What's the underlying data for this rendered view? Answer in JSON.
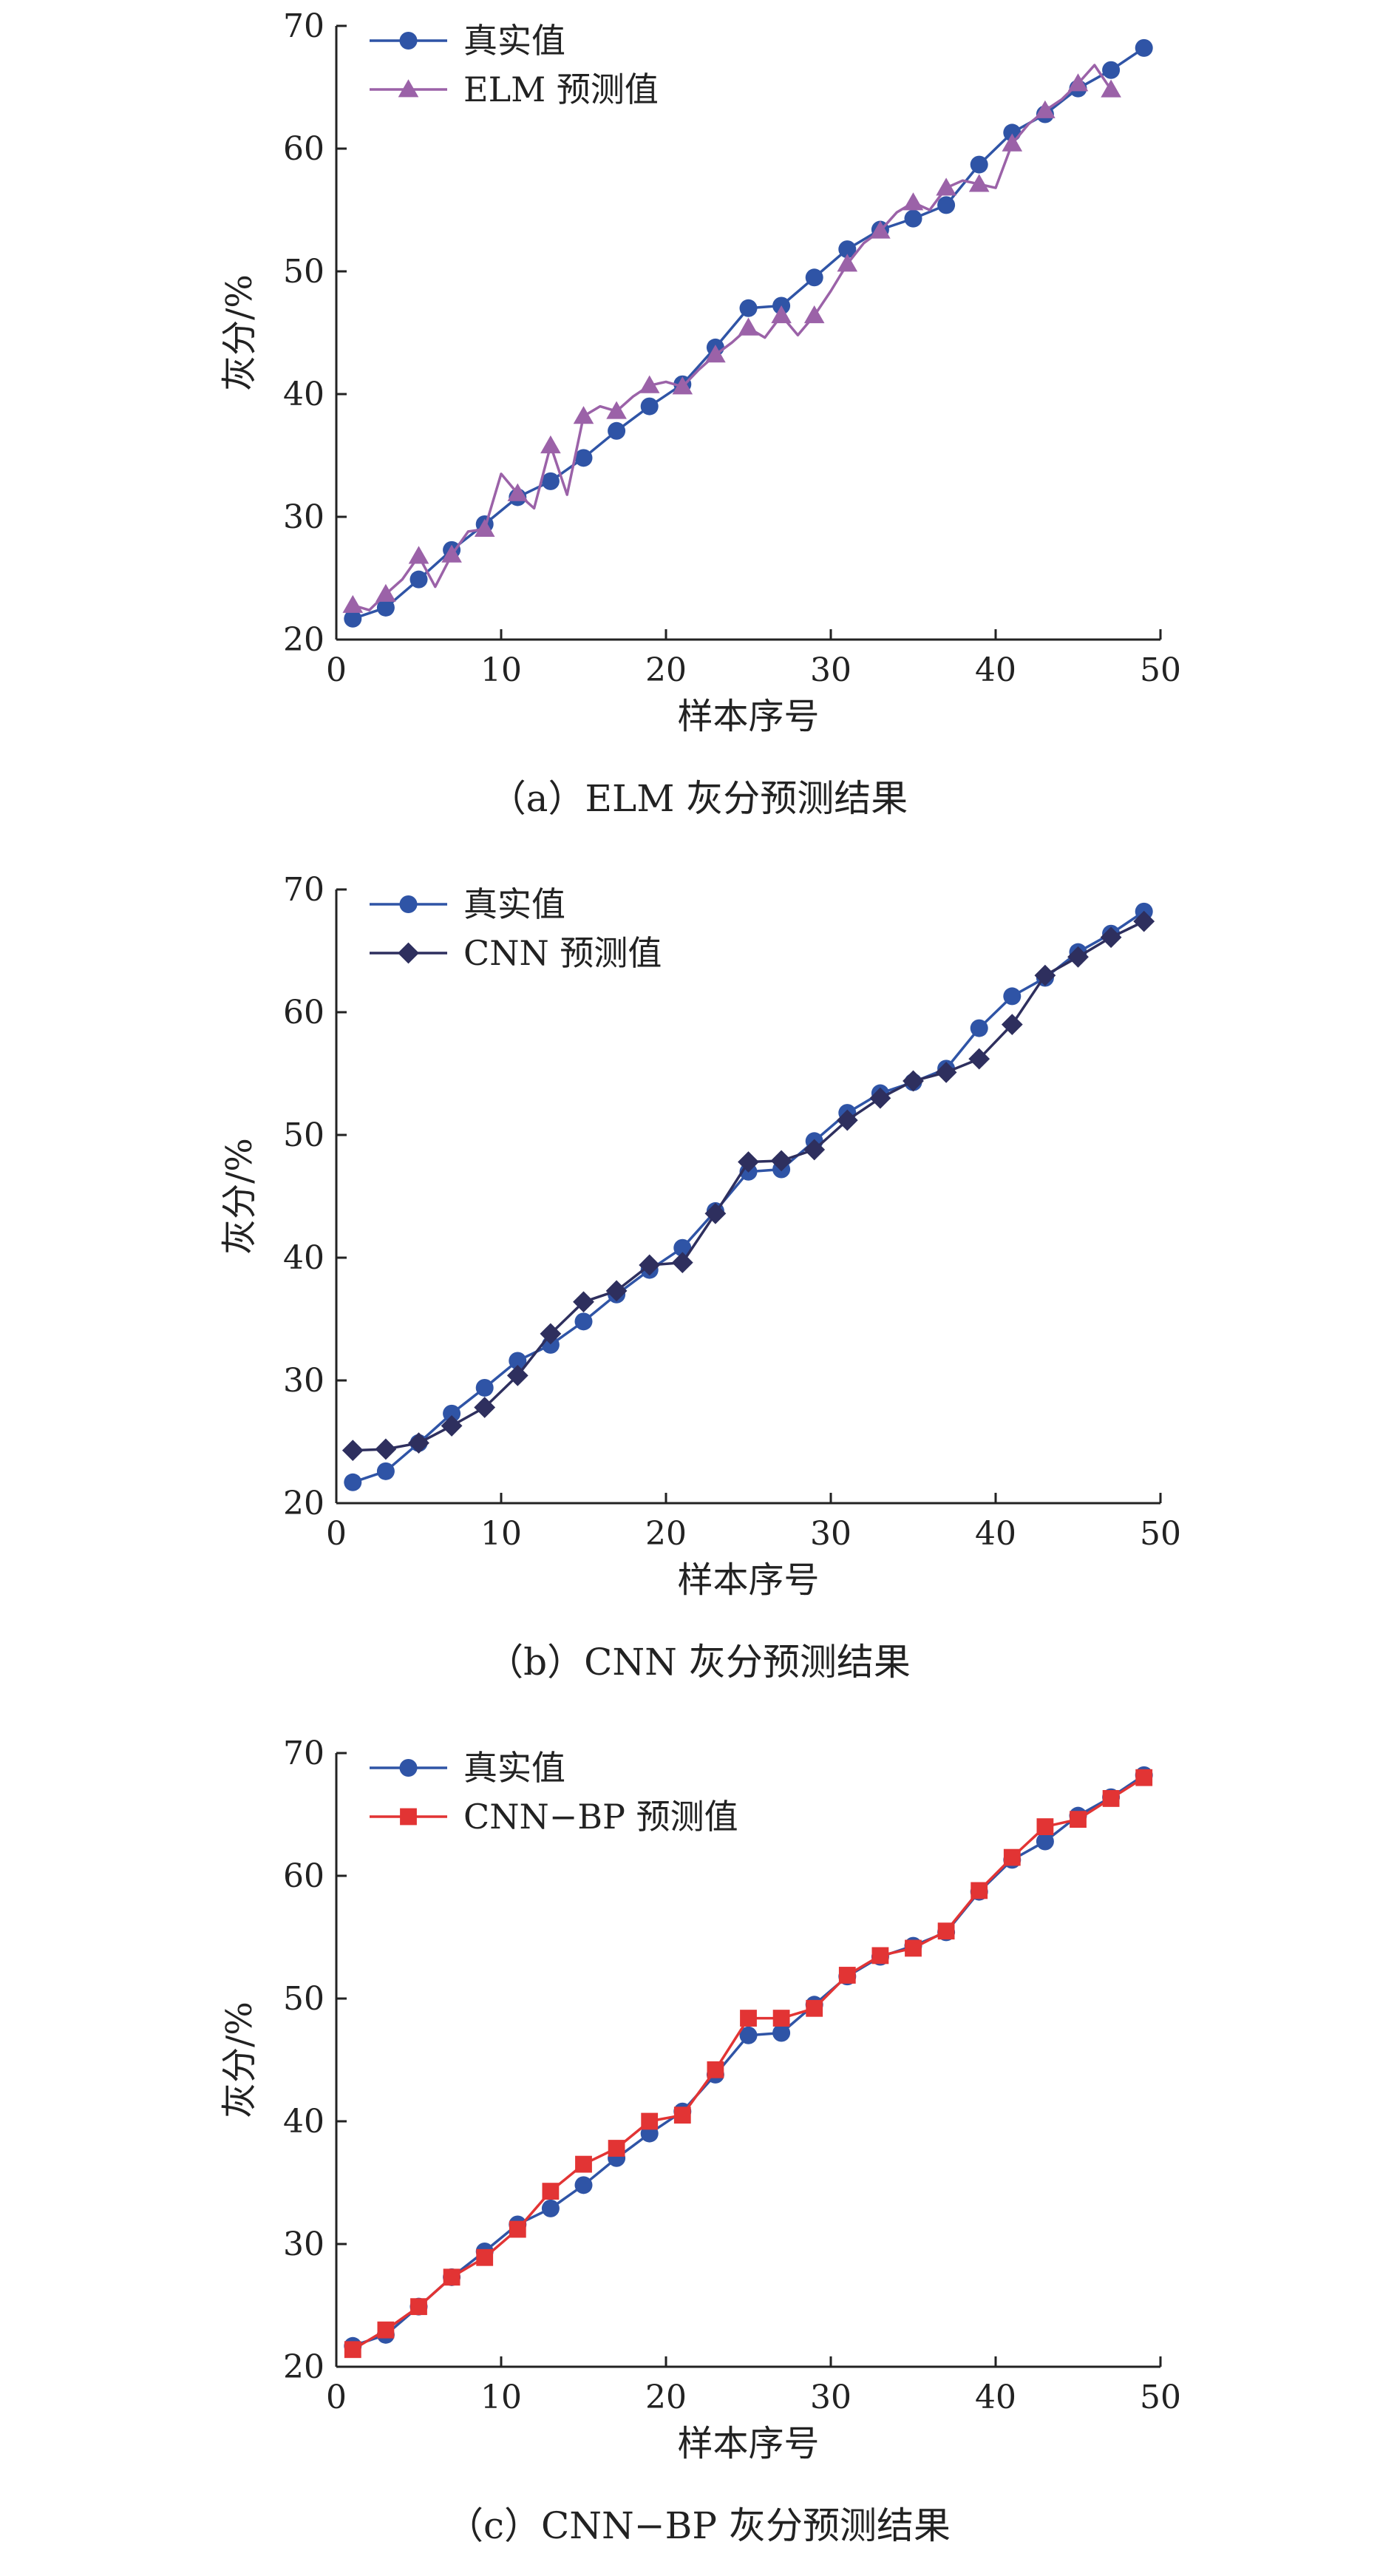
{
  "chart_data": [
    {
      "type": "line",
      "caption": "（a）ELM 灰分预测结果",
      "xlabel": "样本序号",
      "ylabel": "灰分/%",
      "xlim": [
        0,
        50
      ],
      "ylim": [
        20,
        70
      ],
      "xticks": [
        "0",
        "10",
        "20",
        "30",
        "40",
        "50"
      ],
      "yticks": [
        "20",
        "30",
        "40",
        "50",
        "60",
        "70"
      ],
      "grid": false,
      "legend": "top-left",
      "series": [
        {
          "name": "真实值",
          "marker": "circle",
          "color": "#2F54A6",
          "x": [
            1,
            3,
            5,
            7,
            9,
            11,
            13,
            15,
            17,
            19,
            21,
            23,
            25,
            27,
            29,
            31,
            33,
            35,
            37,
            39,
            41,
            43,
            45,
            47,
            49
          ],
          "y": [
            21.7,
            22.6,
            24.9,
            27.3,
            29.4,
            31.6,
            32.9,
            34.8,
            37.0,
            39.0,
            40.8,
            43.8,
            47.0,
            47.2,
            49.5,
            51.8,
            53.4,
            54.3,
            55.4,
            58.7,
            61.3,
            62.8,
            64.9,
            66.4,
            68.2
          ]
        },
        {
          "name": "ELM 预测值",
          "marker": "triangle",
          "color": "#9B62A8",
          "x": [
            1,
            2,
            3,
            4,
            5,
            6,
            7,
            8,
            9,
            10,
            11,
            12,
            13,
            14,
            15,
            16,
            17,
            18,
            19,
            20,
            21,
            22,
            23,
            24,
            25,
            26,
            27,
            28,
            29,
            30,
            31,
            32,
            33,
            34,
            35,
            36,
            37,
            38,
            39,
            40,
            41,
            42,
            43,
            44,
            45,
            46,
            47
          ],
          "y": [
            22.8,
            22.4,
            23.7,
            24.9,
            26.8,
            24.3,
            26.9,
            28.8,
            29.0,
            33.5,
            31.9,
            30.7,
            35.8,
            31.8,
            38.2,
            39.0,
            38.6,
            39.8,
            40.7,
            41.0,
            40.6,
            42.0,
            43.2,
            44.2,
            45.4,
            44.6,
            46.4,
            44.8,
            46.4,
            48.4,
            50.6,
            52.3,
            53.3,
            54.8,
            55.6,
            55.0,
            56.8,
            57.4,
            57.1,
            56.8,
            60.4,
            62.0,
            63.1,
            64.0,
            65.3,
            66.8,
            64.8
          ]
        }
      ]
    },
    {
      "type": "line",
      "caption": "（b）CNN 灰分预测结果",
      "xlabel": "样本序号",
      "ylabel": "灰分/%",
      "xlim": [
        0,
        50
      ],
      "ylim": [
        20,
        70
      ],
      "xticks": [
        "0",
        "10",
        "20",
        "30",
        "40",
        "50"
      ],
      "yticks": [
        "20",
        "30",
        "40",
        "50",
        "60",
        "70"
      ],
      "grid": false,
      "legend": "top-left",
      "series": [
        {
          "name": "真实值",
          "marker": "circle",
          "color": "#2F54A6",
          "x": [
            1,
            3,
            5,
            7,
            9,
            11,
            13,
            15,
            17,
            19,
            21,
            23,
            25,
            27,
            29,
            31,
            33,
            35,
            37,
            39,
            41,
            43,
            45,
            47,
            49
          ],
          "y": [
            21.7,
            22.6,
            24.9,
            27.3,
            29.4,
            31.6,
            32.9,
            34.8,
            37.0,
            39.0,
            40.8,
            43.8,
            47.0,
            47.2,
            49.5,
            51.8,
            53.4,
            54.3,
            55.4,
            58.7,
            61.3,
            62.8,
            64.9,
            66.4,
            68.2
          ]
        },
        {
          "name": "CNN 预测值",
          "marker": "diamond",
          "color": "#2E2F5E",
          "x": [
            1,
            3,
            5,
            7,
            9,
            11,
            13,
            15,
            17,
            19,
            21,
            23,
            25,
            27,
            29,
            31,
            33,
            35,
            37,
            39,
            41,
            43,
            45,
            47,
            49
          ],
          "y": [
            24.3,
            24.4,
            24.9,
            26.3,
            27.8,
            30.4,
            33.8,
            36.4,
            37.3,
            39.4,
            39.6,
            43.6,
            47.8,
            47.9,
            48.8,
            51.2,
            53.0,
            54.4,
            55.1,
            56.2,
            59.0,
            63.0,
            64.5,
            66.1,
            67.4
          ]
        }
      ]
    },
    {
      "type": "line",
      "caption": "（c）CNN−BP 灰分预测结果",
      "xlabel": "样本序号",
      "ylabel": "灰分/%",
      "xlim": [
        0,
        50
      ],
      "ylim": [
        20,
        70
      ],
      "xticks": [
        "0",
        "10",
        "20",
        "30",
        "40",
        "50"
      ],
      "yticks": [
        "20",
        "30",
        "40",
        "50",
        "60",
        "70"
      ],
      "grid": false,
      "legend": "top-left",
      "series": [
        {
          "name": "真实值",
          "marker": "circle",
          "color": "#2F54A6",
          "x": [
            1,
            3,
            5,
            7,
            9,
            11,
            13,
            15,
            17,
            19,
            21,
            23,
            25,
            27,
            29,
            31,
            33,
            35,
            37,
            39,
            41,
            43,
            45,
            47,
            49
          ],
          "y": [
            21.7,
            22.6,
            24.9,
            27.3,
            29.4,
            31.6,
            32.9,
            34.8,
            37.0,
            39.0,
            40.8,
            43.8,
            47.0,
            47.2,
            49.5,
            51.8,
            53.4,
            54.3,
            55.4,
            58.7,
            61.3,
            62.8,
            64.9,
            66.4,
            68.2
          ]
        },
        {
          "name": "CNN−BP 预测值",
          "marker": "square",
          "color": "#E23434",
          "x": [
            1,
            3,
            5,
            7,
            9,
            11,
            13,
            15,
            17,
            19,
            21,
            23,
            25,
            27,
            29,
            31,
            33,
            35,
            37,
            39,
            41,
            43,
            45,
            47,
            49
          ],
          "y": [
            21.4,
            23.0,
            24.9,
            27.3,
            28.9,
            31.2,
            34.3,
            36.5,
            37.8,
            40.0,
            40.5,
            44.2,
            48.4,
            48.4,
            49.2,
            51.9,
            53.5,
            54.1,
            55.5,
            58.8,
            61.5,
            64.0,
            64.6,
            66.3,
            68.0
          ]
        }
      ]
    }
  ]
}
